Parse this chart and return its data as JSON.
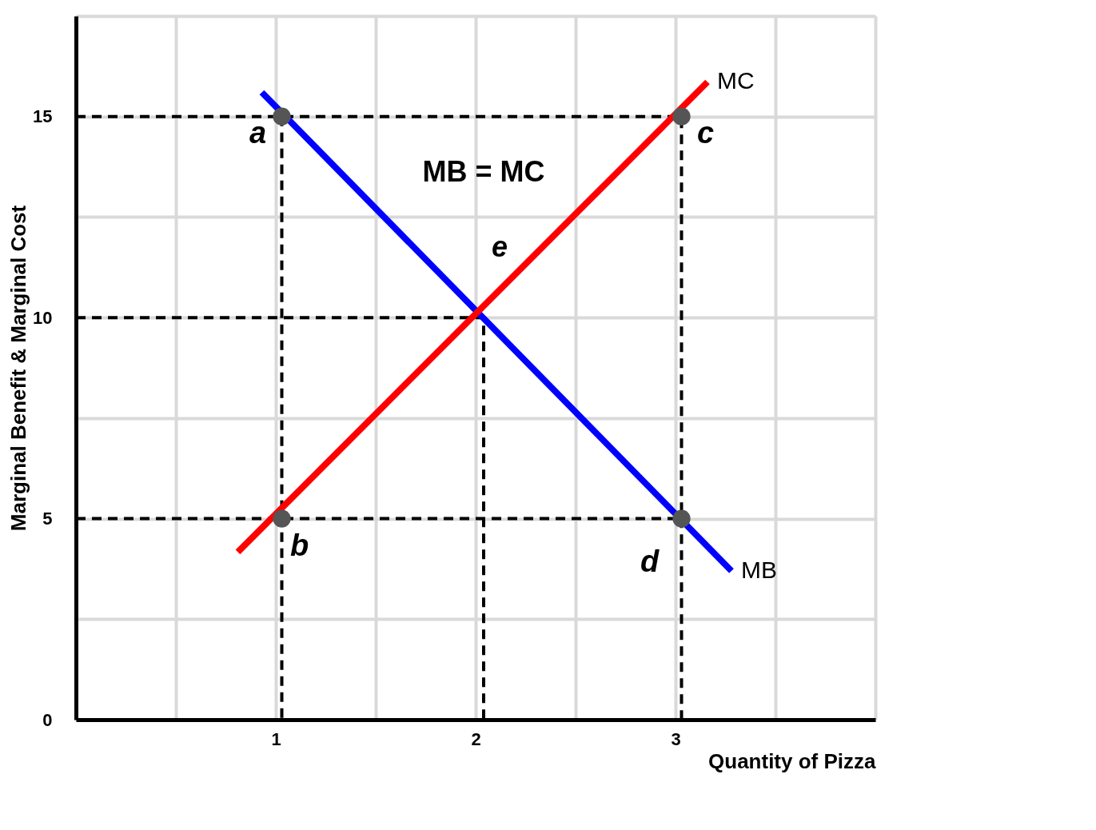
{
  "chart_data": {
    "type": "line",
    "xlabel": "Quantity of Pizza",
    "ylabel": "Marginal Benefit & Marginal Cost",
    "xlim": [
      0,
      4
    ],
    "ylim": [
      0,
      17.5
    ],
    "xticks": [
      {
        "value": 0.5,
        "label": null
      },
      1,
      {
        "value": 1.5,
        "label": null
      },
      2,
      {
        "value": 2.5,
        "label": null
      },
      3,
      {
        "value": 3.5,
        "label": null
      },
      {
        "value": 4,
        "label": null
      }
    ],
    "yticks": [
      0,
      {
        "value": 2.5,
        "label": null
      },
      5,
      {
        "value": 7.5,
        "label": null
      },
      10,
      {
        "value": 12.5,
        "label": null
      },
      15,
      {
        "value": 17.5,
        "label": null
      }
    ],
    "grid": true,
    "series": [
      {
        "line_style": "dashed",
        "color": "#000000",
        "x": [
          0,
          3.03,
          3.03
        ],
        "values": [
          15,
          15,
          0
        ]
      },
      {
        "line_style": "dashed",
        "color": "#000000",
        "x": [
          0,
          2.04,
          2.04
        ],
        "values": [
          10,
          10,
          0
        ]
      },
      {
        "line_style": "dashed",
        "color": "#000000",
        "x": [
          0,
          3.03
        ],
        "values": [
          5,
          5
        ]
      },
      {
        "line_style": "dashed",
        "color": "#000000",
        "x": [
          1.03,
          1.03
        ],
        "values": [
          15,
          0
        ]
      },
      {
        "name": "MB",
        "color": "#0000ff",
        "x": [
          0.93,
          3.28
        ],
        "values": [
          15.6,
          3.7
        ]
      },
      {
        "name": "MC",
        "color": "#ff0000",
        "x": [
          0.81,
          3.16
        ],
        "values": [
          4.17,
          15.86
        ]
      },
      {
        "type": "scatter",
        "color": "#555555",
        "x": [
          1.03,
          1.03,
          3.03,
          3.03
        ],
        "values": [
          15,
          5,
          15,
          5
        ],
        "value_labels": [
          "a",
          "b",
          "c",
          "d"
        ]
      }
    ],
    "annotations": [
      "e",
      "MB = MC"
    ]
  }
}
